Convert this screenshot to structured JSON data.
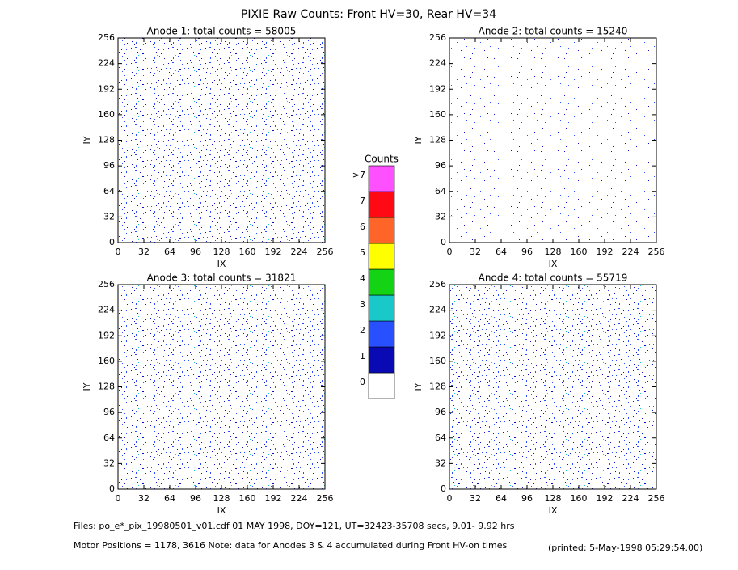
{
  "title": "PIXIE Raw Counts:  Front HV=30, Rear HV=34",
  "chart_data": [
    {
      "type": "heatmap",
      "title": "Anode 1: total counts = 58005",
      "xlabel": "IX",
      "ylabel": "IY",
      "xlim": [
        0,
        256
      ],
      "ylim": [
        0,
        256
      ],
      "xticks": [
        0,
        32,
        64,
        96,
        128,
        160,
        192,
        224,
        256
      ],
      "yticks": [
        0,
        32,
        64,
        96,
        128,
        160,
        192,
        224,
        256
      ]
    },
    {
      "type": "heatmap",
      "title": "Anode 2: total counts = 15240",
      "xlabel": "IX",
      "ylabel": "IY",
      "xlim": [
        0,
        256
      ],
      "ylim": [
        0,
        256
      ],
      "xticks": [
        0,
        32,
        64,
        96,
        128,
        160,
        192,
        224,
        256
      ],
      "yticks": [
        0,
        32,
        64,
        96,
        128,
        160,
        192,
        224,
        256
      ]
    },
    {
      "type": "heatmap",
      "title": "Anode 3: total counts = 31821",
      "xlabel": "IX",
      "ylabel": "IY",
      "xlim": [
        0,
        256
      ],
      "ylim": [
        0,
        256
      ],
      "xticks": [
        0,
        32,
        64,
        96,
        128,
        160,
        192,
        224,
        256
      ],
      "yticks": [
        0,
        32,
        64,
        96,
        128,
        160,
        192,
        224,
        256
      ]
    },
    {
      "type": "heatmap",
      "title": "Anode 4: total counts = 55719",
      "xlabel": "IX",
      "ylabel": "IY",
      "xlim": [
        0,
        256
      ],
      "ylim": [
        0,
        256
      ],
      "xticks": [
        0,
        32,
        64,
        96,
        128,
        160,
        192,
        224,
        256
      ],
      "yticks": [
        0,
        32,
        64,
        96,
        128,
        160,
        192,
        224,
        256
      ]
    }
  ],
  "colorbar": {
    "title": "Counts",
    "labels": [
      "0",
      "1",
      "2",
      "3",
      "4",
      "5",
      "6",
      "7",
      ">7"
    ],
    "colors": [
      "#ffffff",
      "#0a0ab4",
      "#2850ff",
      "#19c8c8",
      "#14d214",
      "#ffff00",
      "#ff6428",
      "#ff0a14",
      "#ff50ff"
    ]
  },
  "footer": {
    "files": "Files: po_e*_pix_19980501_v01.cdf    01 MAY 1998, DOY=121, UT=32423-35708 secs,  9.01- 9.92 hrs",
    "motor": "Motor Positions = 1178, 3616    Note: data for Anodes 3 & 4 accumulated during Front HV-on times",
    "printed": "(printed:  5-May-1998 05:29:54.00)"
  }
}
